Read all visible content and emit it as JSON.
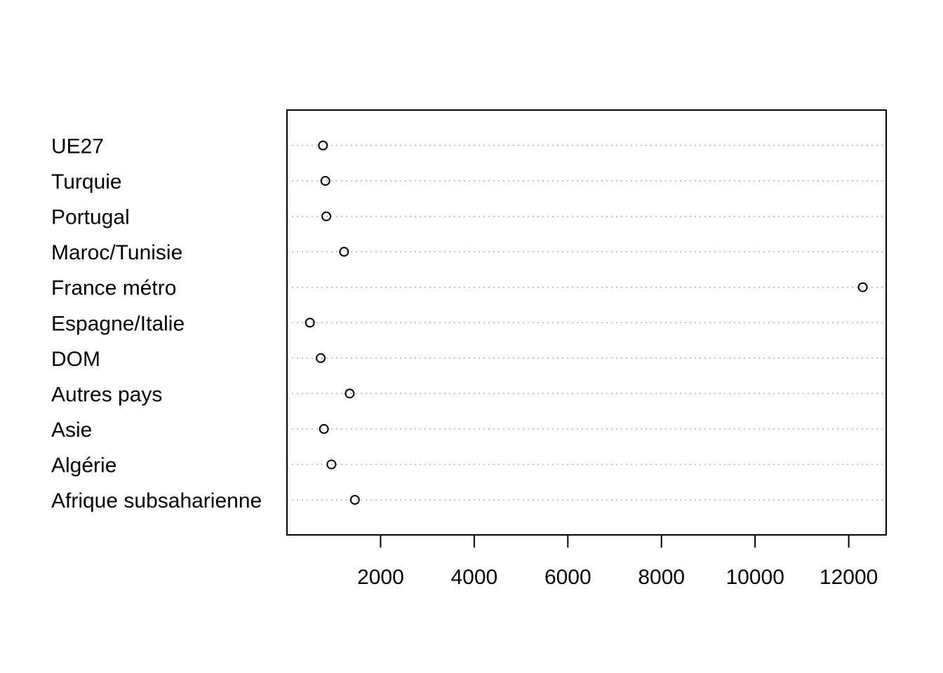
{
  "chart_data": {
    "type": "dotplot",
    "title": "",
    "xlabel": "",
    "ylabel": "",
    "categories": [
      "Afrique subsaharienne",
      "Algérie",
      "Asie",
      "Autres pays",
      "DOM",
      "Espagne/Italie",
      "France métro",
      "Maroc/Tunisie",
      "Portugal",
      "Turquie",
      "UE27"
    ],
    "values": [
      1450,
      950,
      790,
      1340,
      720,
      490,
      12300,
      1220,
      840,
      820,
      770
    ],
    "xlim": [
      0,
      12800
    ],
    "xticks": [
      2000,
      4000,
      6000,
      8000,
      10000,
      12000
    ],
    "xtick_labels": [
      "2000",
      "4000",
      "6000",
      "8000",
      "10000",
      "12000"
    ],
    "grid": "dotted horizontal guide lines",
    "marker": "open circle",
    "colors": {
      "marker": "#000000",
      "guide": "#b0b0b0",
      "axis": "#000000"
    }
  }
}
